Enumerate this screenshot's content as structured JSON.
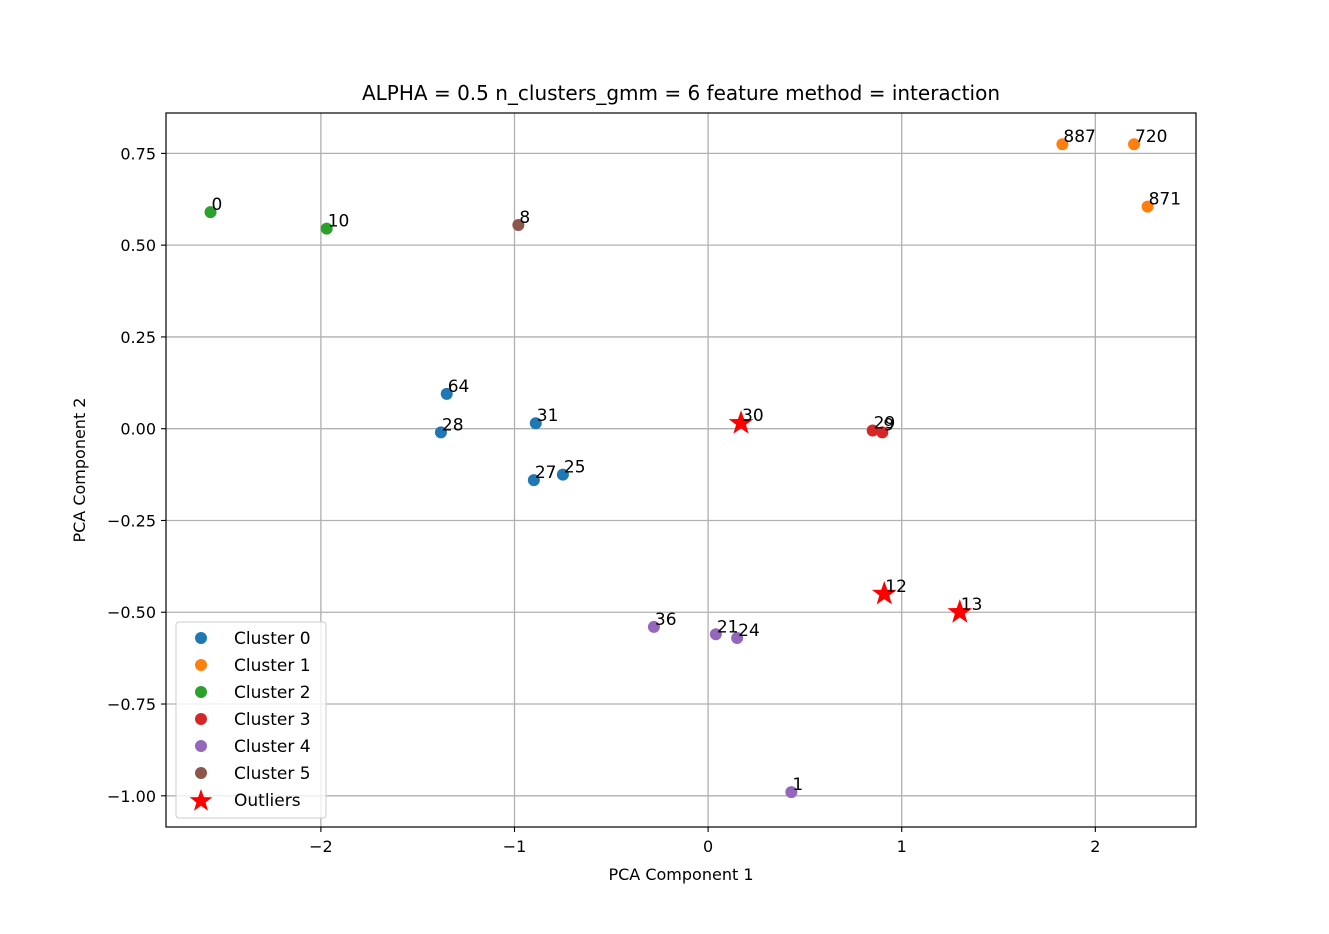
{
  "chart_data": {
    "type": "scatter",
    "title": "ALPHA = 0.5 n_clusters_gmm = 6  feature method = interaction",
    "xlabel": "PCA Component 1",
    "ylabel": "PCA Component 2",
    "xlim": [
      -2.8,
      2.52
    ],
    "ylim": [
      -1.085,
      0.86
    ],
    "xticks": [
      -2,
      -1,
      0,
      1,
      2
    ],
    "xtick_labels": [
      "−2",
      "−1",
      "0",
      "1",
      "2"
    ],
    "yticks": [
      0.75,
      0.5,
      0.25,
      0.0,
      -0.25,
      -0.5,
      -0.75,
      -1.0
    ],
    "ytick_labels": [
      "0.75",
      "0.50",
      "0.25",
      "0.00",
      "−0.25",
      "−0.50",
      "−0.75",
      "−1.00"
    ],
    "grid": true,
    "legend_position": "lower-left",
    "series": [
      {
        "name": "Cluster 0",
        "color": "#1f77b4",
        "marker": "circle",
        "points": [
          {
            "x": -1.35,
            "y": 0.095,
            "label": "64"
          },
          {
            "x": -1.38,
            "y": -0.01,
            "label": "28"
          },
          {
            "x": -0.89,
            "y": 0.015,
            "label": "31"
          },
          {
            "x": -0.9,
            "y": -0.14,
            "label": "27"
          },
          {
            "x": -0.75,
            "y": -0.125,
            "label": "25"
          }
        ]
      },
      {
        "name": "Cluster 1",
        "color": "#ff7f0e",
        "marker": "circle",
        "points": [
          {
            "x": 1.83,
            "y": 0.775,
            "label": "887"
          },
          {
            "x": 2.2,
            "y": 0.775,
            "label": "720"
          },
          {
            "x": 2.27,
            "y": 0.605,
            "label": "871"
          }
        ]
      },
      {
        "name": "Cluster 2",
        "color": "#2ca02c",
        "marker": "circle",
        "points": [
          {
            "x": -2.57,
            "y": 0.59,
            "label": "0"
          },
          {
            "x": -1.97,
            "y": 0.545,
            "label": "10"
          }
        ]
      },
      {
        "name": "Cluster 3",
        "color": "#d62728",
        "marker": "circle",
        "points": [
          {
            "x": 0.85,
            "y": -0.005,
            "label": "29"
          },
          {
            "x": 0.9,
            "y": -0.01,
            "label": "9"
          }
        ]
      },
      {
        "name": "Cluster 4",
        "color": "#9467bd",
        "marker": "circle",
        "points": [
          {
            "x": -0.28,
            "y": -0.54,
            "label": "36"
          },
          {
            "x": 0.04,
            "y": -0.56,
            "label": "21"
          },
          {
            "x": 0.15,
            "y": -0.57,
            "label": "24"
          },
          {
            "x": 0.43,
            "y": -0.99,
            "label": "1"
          }
        ]
      },
      {
        "name": "Cluster 5",
        "color": "#8c564b",
        "marker": "circle",
        "points": [
          {
            "x": -0.98,
            "y": 0.555,
            "label": "8"
          }
        ]
      },
      {
        "name": "Outliers",
        "color": "#ff0000",
        "marker": "star",
        "points": [
          {
            "x": 0.17,
            "y": 0.015,
            "label": "30"
          },
          {
            "x": 0.91,
            "y": -0.45,
            "label": "12"
          },
          {
            "x": 1.3,
            "y": -0.5,
            "label": "13"
          }
        ]
      }
    ]
  }
}
